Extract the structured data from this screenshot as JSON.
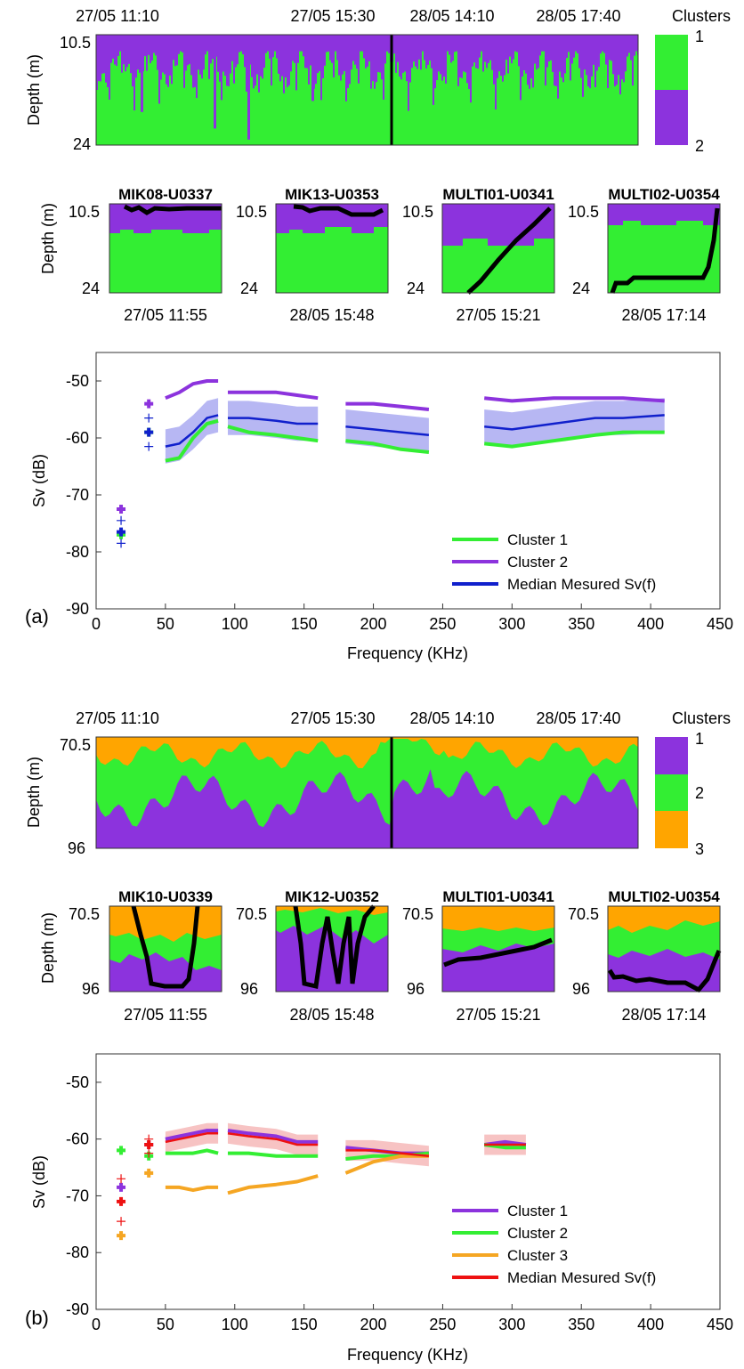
{
  "panel_a": {
    "label": "(a)",
    "overview": {
      "time_labels": [
        "27/05 11:10",
        "27/05 15:30",
        "28/05 14:10",
        "28/05 17:40"
      ],
      "ylabel": "Depth (m)",
      "depth_top": "10.5",
      "depth_bottom": "24",
      "colorbar_title": "Clusters",
      "colorbar_labels": [
        "1",
        "2"
      ],
      "colors": [
        "#33ee33",
        "#8c33dd"
      ],
      "green_top_pct": 0.25
    },
    "small_panels": [
      {
        "title": "MIK08-U0337",
        "time": "27/05 11:55"
      },
      {
        "title": "MIK13-U0353",
        "time": "28/05 15:48"
      },
      {
        "title": "MULTI01-U0341",
        "time": "27/05 15:21"
      },
      {
        "title": "MULTI02-U0354",
        "time": "28/05 17:14"
      }
    ],
    "small_depth_top": "10.5",
    "small_depth_bottom": "24"
  },
  "panel_b": {
    "label": "(b)",
    "overview": {
      "time_labels": [
        "27/05 11:10",
        "27/05 15:30",
        "28/05 14:10",
        "28/05 17:40"
      ],
      "ylabel": "Depth (m)",
      "depth_top": "70.5",
      "depth_bottom": "96",
      "colorbar_title": "Clusters",
      "colorbar_labels": [
        "1",
        "2",
        "3"
      ],
      "colors": [
        "#8c33dd",
        "#33ee33",
        "#ffa500"
      ]
    },
    "small_panels": [
      {
        "title": "MIK10-U0339",
        "time": "27/05 11:55"
      },
      {
        "title": "MIK12-U0352",
        "time": "28/05 15:48"
      },
      {
        "title": "MULTI01-U0341",
        "time": "27/05 15:21"
      },
      {
        "title": "MULTI02-U0354",
        "time": "28/05 17:14"
      }
    ],
    "small_depth_top": "70.5",
    "small_depth_bottom": "96"
  },
  "chart_data": [
    {
      "type": "line",
      "panel": "a",
      "xlabel": "Frequency (KHz)",
      "ylabel": "Sv (dB)",
      "xlim": [
        0,
        450
      ],
      "ylim": [
        -90,
        -45
      ],
      "xticks": [
        0,
        50,
        100,
        150,
        200,
        250,
        300,
        350,
        400,
        450
      ],
      "yticks": [
        -90,
        -80,
        -70,
        -60,
        -50
      ],
      "legend_position": "bottom-right",
      "series": [
        {
          "name": "Cluster 1",
          "color": "#33ee33",
          "segments": [
            {
              "x": [
                50,
                60,
                70,
                80,
                88
              ],
              "y": [
                -64,
                -63.5,
                -60,
                -57.5,
                -57
              ]
            },
            {
              "x": [
                95,
                110,
                130,
                145,
                160
              ],
              "y": [
                -58,
                -59,
                -59.5,
                -60,
                -60.5
              ]
            },
            {
              "x": [
                180,
                200,
                220,
                240
              ],
              "y": [
                -60.5,
                -61,
                -62,
                -62.5
              ]
            },
            {
              "x": [
                280,
                300,
                330,
                360,
                380,
                410
              ],
              "y": [
                -61,
                -61.5,
                -60.5,
                -59.5,
                -59,
                -59
              ]
            }
          ],
          "markers": [
            {
              "x": 18,
              "y": -77
            },
            {
              "x": 38,
              "y": -59
            }
          ]
        },
        {
          "name": "Cluster 2",
          "color": "#8c33dd",
          "segments": [
            {
              "x": [
                50,
                60,
                70,
                80,
                88
              ],
              "y": [
                -53,
                -52,
                -50.5,
                -50,
                -50
              ]
            },
            {
              "x": [
                95,
                110,
                130,
                145,
                160
              ],
              "y": [
                -52,
                -52,
                -52,
                -52.5,
                -53
              ]
            },
            {
              "x": [
                180,
                200,
                220,
                240
              ],
              "y": [
                -54,
                -54,
                -54.5,
                -55
              ]
            },
            {
              "x": [
                280,
                300,
                330,
                360,
                380,
                410
              ],
              "y": [
                -53,
                -53.5,
                -53,
                -53,
                -53,
                -53.5
              ]
            }
          ],
          "markers": [
            {
              "x": 18,
              "y": -72.5
            },
            {
              "x": 38,
              "y": -54
            }
          ]
        },
        {
          "name": "Median Mesured Sv(f)",
          "color": "#1020cc",
          "band_color": "#9999ee",
          "band_halfwidth": 3,
          "segments": [
            {
              "x": [
                50,
                60,
                70,
                80,
                88
              ],
              "y": [
                -61.5,
                -61,
                -59,
                -56.5,
                -56
              ]
            },
            {
              "x": [
                95,
                110,
                130,
                145,
                160
              ],
              "y": [
                -56.5,
                -56.5,
                -57,
                -57.5,
                -57.5
              ]
            },
            {
              "x": [
                180,
                200,
                220,
                240
              ],
              "y": [
                -58,
                -58.5,
                -59,
                -59.5
              ]
            },
            {
              "x": [
                280,
                300,
                330,
                360,
                380,
                410
              ],
              "y": [
                -58,
                -58.5,
                -57.5,
                -56.5,
                -56.5,
                -56
              ]
            }
          ],
          "markers": [
            {
              "x": 18,
              "y": -76.5
            },
            {
              "x": 38,
              "y": -59
            }
          ],
          "thin_markers": [
            {
              "x": 18,
              "y": -74.5
            },
            {
              "x": 18,
              "y": -78.5
            },
            {
              "x": 38,
              "y": -56.5
            },
            {
              "x": 38,
              "y": -61.5
            }
          ]
        }
      ]
    },
    {
      "type": "line",
      "panel": "b",
      "xlabel": "Frequency (KHz)",
      "ylabel": "Sv (dB)",
      "xlim": [
        0,
        450
      ],
      "ylim": [
        -90,
        -45
      ],
      "xticks": [
        0,
        50,
        100,
        150,
        200,
        250,
        300,
        350,
        400,
        450
      ],
      "yticks": [
        -90,
        -80,
        -70,
        -60,
        -50
      ],
      "legend_position": "bottom-right",
      "series": [
        {
          "name": "Cluster 1",
          "color": "#8c33dd",
          "segments": [
            {
              "x": [
                50,
                60,
                70,
                80,
                88
              ],
              "y": [
                -60,
                -59.5,
                -59,
                -58.5,
                -58.5
              ]
            },
            {
              "x": [
                95,
                110,
                130,
                145,
                160
              ],
              "y": [
                -58.5,
                -59,
                -59.5,
                -60.5,
                -60.5
              ]
            },
            {
              "x": [
                180,
                200,
                220,
                240
              ],
              "y": [
                -61.5,
                -62,
                -62.5,
                -62.5
              ]
            },
            {
              "x": [
                280,
                295,
                310
              ],
              "y": [
                -61,
                -60.5,
                -61
              ]
            }
          ],
          "markers": [
            {
              "x": 18,
              "y": -68.5
            },
            {
              "x": 38,
              "y": -61
            }
          ]
        },
        {
          "name": "Cluster 2",
          "color": "#33ee33",
          "segments": [
            {
              "x": [
                50,
                60,
                70,
                80,
                88
              ],
              "y": [
                -62.5,
                -62.5,
                -62.5,
                -62,
                -62.5
              ]
            },
            {
              "x": [
                95,
                110,
                130,
                145,
                160
              ],
              "y": [
                -62.5,
                -62.5,
                -63,
                -63,
                -63
              ]
            },
            {
              "x": [
                180,
                200,
                220,
                240
              ],
              "y": [
                -63.5,
                -63,
                -63,
                -62.5
              ]
            },
            {
              "x": [
                280,
                295,
                310
              ],
              "y": [
                -61,
                -61.5,
                -61.5
              ]
            }
          ],
          "markers": [
            {
              "x": 18,
              "y": -62
            },
            {
              "x": 38,
              "y": -63
            }
          ]
        },
        {
          "name": "Cluster 3",
          "color": "#f5a623",
          "segments": [
            {
              "x": [
                50,
                60,
                70,
                80,
                88
              ],
              "y": [
                -68.5,
                -68.5,
                -69,
                -68.5,
                -68.5
              ]
            },
            {
              "x": [
                95,
                110,
                130,
                145,
                160
              ],
              "y": [
                -69.5,
                -68.5,
                -68,
                -67.5,
                -66.5
              ]
            },
            {
              "x": [
                180,
                190,
                200,
                220,
                240
              ],
              "y": [
                -66,
                -65,
                -64,
                -63,
                -63
              ]
            }
          ],
          "markers": [
            {
              "x": 18,
              "y": -77
            },
            {
              "x": 38,
              "y": -66
            }
          ]
        },
        {
          "name": "Median Mesured Sv(f)",
          "color": "#ee1111",
          "band_color": "#f4aaaa",
          "band_halfwidth": 1.8,
          "segments": [
            {
              "x": [
                50,
                60,
                70,
                80,
                88
              ],
              "y": [
                -60.5,
                -60,
                -59.5,
                -59,
                -59
              ]
            },
            {
              "x": [
                95,
                110,
                130,
                145,
                160
              ],
              "y": [
                -59,
                -59.5,
                -60,
                -61,
                -61
              ]
            },
            {
              "x": [
                180,
                200,
                220,
                240
              ],
              "y": [
                -62,
                -62,
                -62.5,
                -63
              ]
            },
            {
              "x": [
                280,
                295,
                310
              ],
              "y": [
                -61,
                -61,
                -61
              ]
            }
          ],
          "markers": [
            {
              "x": 18,
              "y": -71
            },
            {
              "x": 38,
              "y": -61
            }
          ],
          "thin_markers": [
            {
              "x": 18,
              "y": -67
            },
            {
              "x": 18,
              "y": -74.5
            },
            {
              "x": 38,
              "y": -60
            },
            {
              "x": 38,
              "y": -62.5
            }
          ]
        }
      ]
    }
  ]
}
